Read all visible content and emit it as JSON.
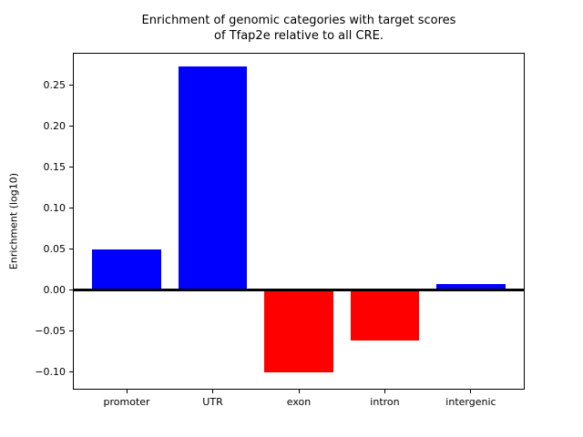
{
  "chart_data": {
    "type": "bar",
    "title": "Enrichment of genomic categories with target scores\nof Tfap2e relative to all CRE.",
    "title_lines": [
      "Enrichment of genomic categories with target scores",
      "of Tfap2e relative to all CRE."
    ],
    "categories": [
      "promoter",
      "UTR",
      "exon",
      "intron",
      "intergenic"
    ],
    "values": [
      0.049,
      0.272,
      -0.101,
      -0.062,
      0.007
    ],
    "bar_colors": [
      "#0000ff",
      "#0000ff",
      "#ff0000",
      "#ff0000",
      "#0000ff"
    ],
    "positive_color": "#0000ff",
    "negative_color": "#ff0000",
    "xlabel": "",
    "ylabel": "Enrichment (log10)",
    "yticks": [
      0.25,
      0.2,
      0.15,
      0.1,
      0.05,
      0.0,
      -0.05,
      -0.1
    ],
    "ylim": [
      -0.122,
      0.289
    ],
    "zero_line": true,
    "grid": false,
    "legend_position": "none",
    "plot_bg_color": "#ffffff",
    "figure_bg_color": "#ffffff"
  }
}
